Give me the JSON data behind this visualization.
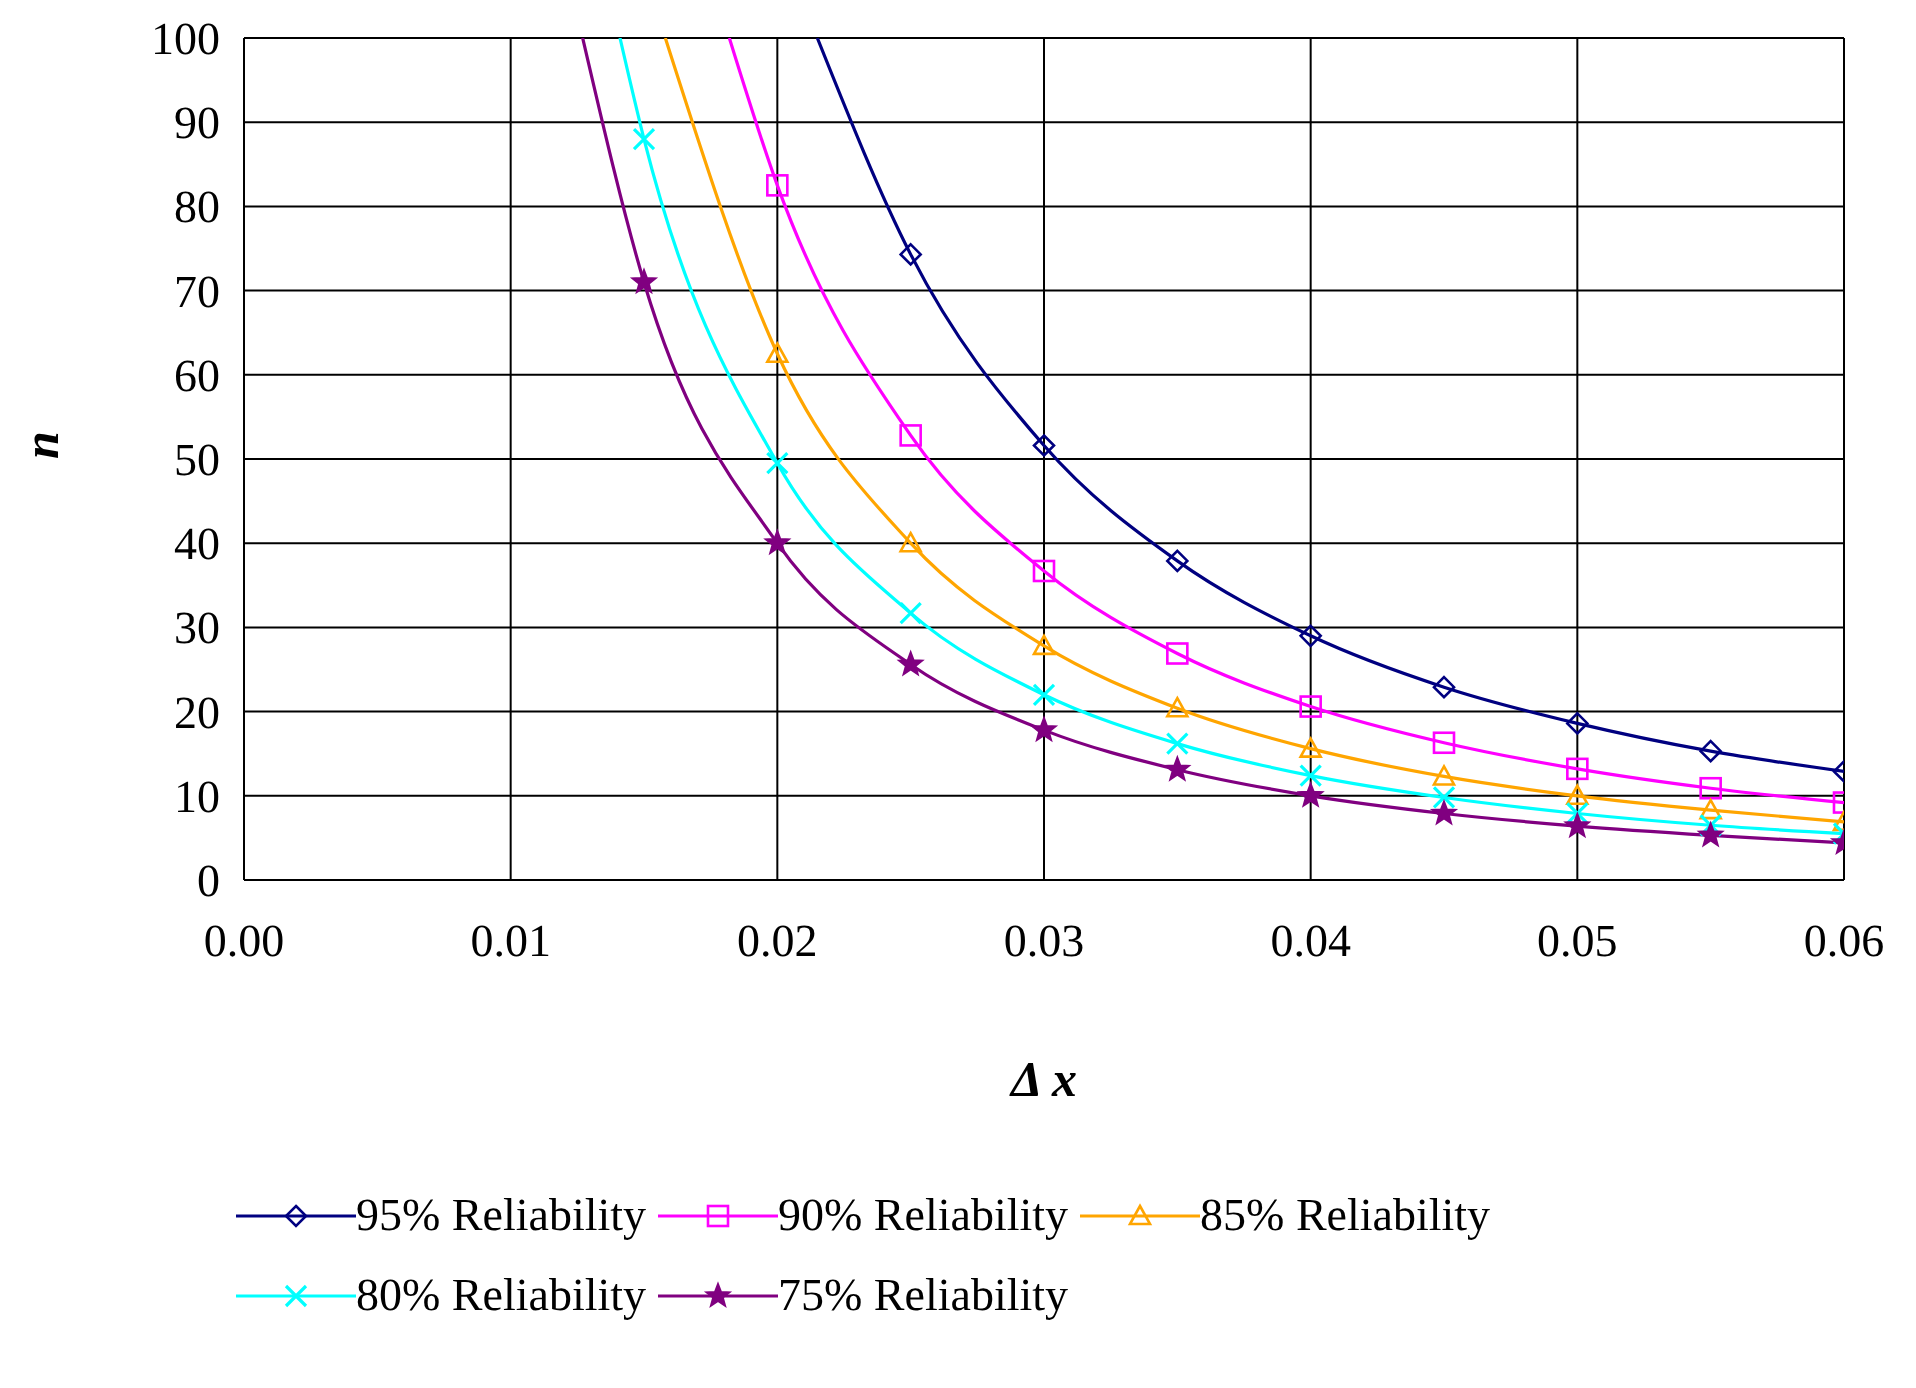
{
  "chart_data": {
    "type": "line",
    "xlabel": "Δ x",
    "ylabel": "n",
    "xlim": [
      0,
      0.06
    ],
    "ylim": [
      0,
      100
    ],
    "xticks": [
      {
        "value": 0,
        "label": "0.00"
      },
      {
        "value": 0.01,
        "label": "0.01"
      },
      {
        "value": 0.02,
        "label": "0.02"
      },
      {
        "value": 0.03,
        "label": "0.03"
      },
      {
        "value": 0.04,
        "label": "0.04"
      },
      {
        "value": 0.05,
        "label": "0.05"
      },
      {
        "value": 0.06,
        "label": "0.06"
      }
    ],
    "yticks": [
      0,
      10,
      20,
      30,
      40,
      50,
      60,
      70,
      80,
      90,
      100
    ],
    "grid": true,
    "legend": "bottom",
    "line_style": "solid",
    "series": [
      {
        "name": "95% Reliability",
        "color": "#000080",
        "marker": "diamond",
        "x": [
          0.0215,
          0.025,
          0.03,
          0.035,
          0.04,
          0.045,
          0.05,
          0.055,
          0.06
        ],
        "values": [
          100,
          74.3,
          51.6,
          37.9,
          29.0,
          22.9,
          18.6,
          15.3,
          12.9
        ]
      },
      {
        "name": "90% Reliability",
        "color": "#ff00ff",
        "marker": "square",
        "x": [
          0.0182,
          0.02,
          0.025,
          0.03,
          0.035,
          0.04,
          0.045,
          0.05,
          0.055,
          0.06
        ],
        "values": [
          100,
          82.5,
          52.8,
          36.7,
          26.9,
          20.6,
          16.3,
          13.2,
          10.9,
          9.2
        ]
      },
      {
        "name": "85% Reliability",
        "color": "#ffa500",
        "marker": "triangle",
        "x": [
          0.0158,
          0.02,
          0.025,
          0.03,
          0.035,
          0.04,
          0.045,
          0.05,
          0.055,
          0.06
        ],
        "values": [
          100,
          62.5,
          40.0,
          27.8,
          20.4,
          15.6,
          12.3,
          10.0,
          8.3,
          6.9
        ]
      },
      {
        "name": "80% Reliability",
        "color": "#00ffff",
        "marker": "cross",
        "x": [
          0.0141,
          0.015,
          0.02,
          0.025,
          0.03,
          0.035,
          0.04,
          0.045,
          0.05,
          0.055,
          0.06
        ],
        "values": [
          100,
          88.0,
          49.5,
          31.7,
          22.0,
          16.2,
          12.4,
          9.8,
          7.9,
          6.5,
          5.5
        ]
      },
      {
        "name": "75% Reliability",
        "color": "#800080",
        "marker": "star",
        "x": [
          0.0127,
          0.015,
          0.02,
          0.025,
          0.03,
          0.035,
          0.04,
          0.045,
          0.05,
          0.055,
          0.06
        ],
        "values": [
          100,
          71.0,
          40.0,
          25.6,
          17.8,
          13.1,
          10.0,
          7.9,
          6.4,
          5.3,
          4.4
        ]
      }
    ]
  }
}
